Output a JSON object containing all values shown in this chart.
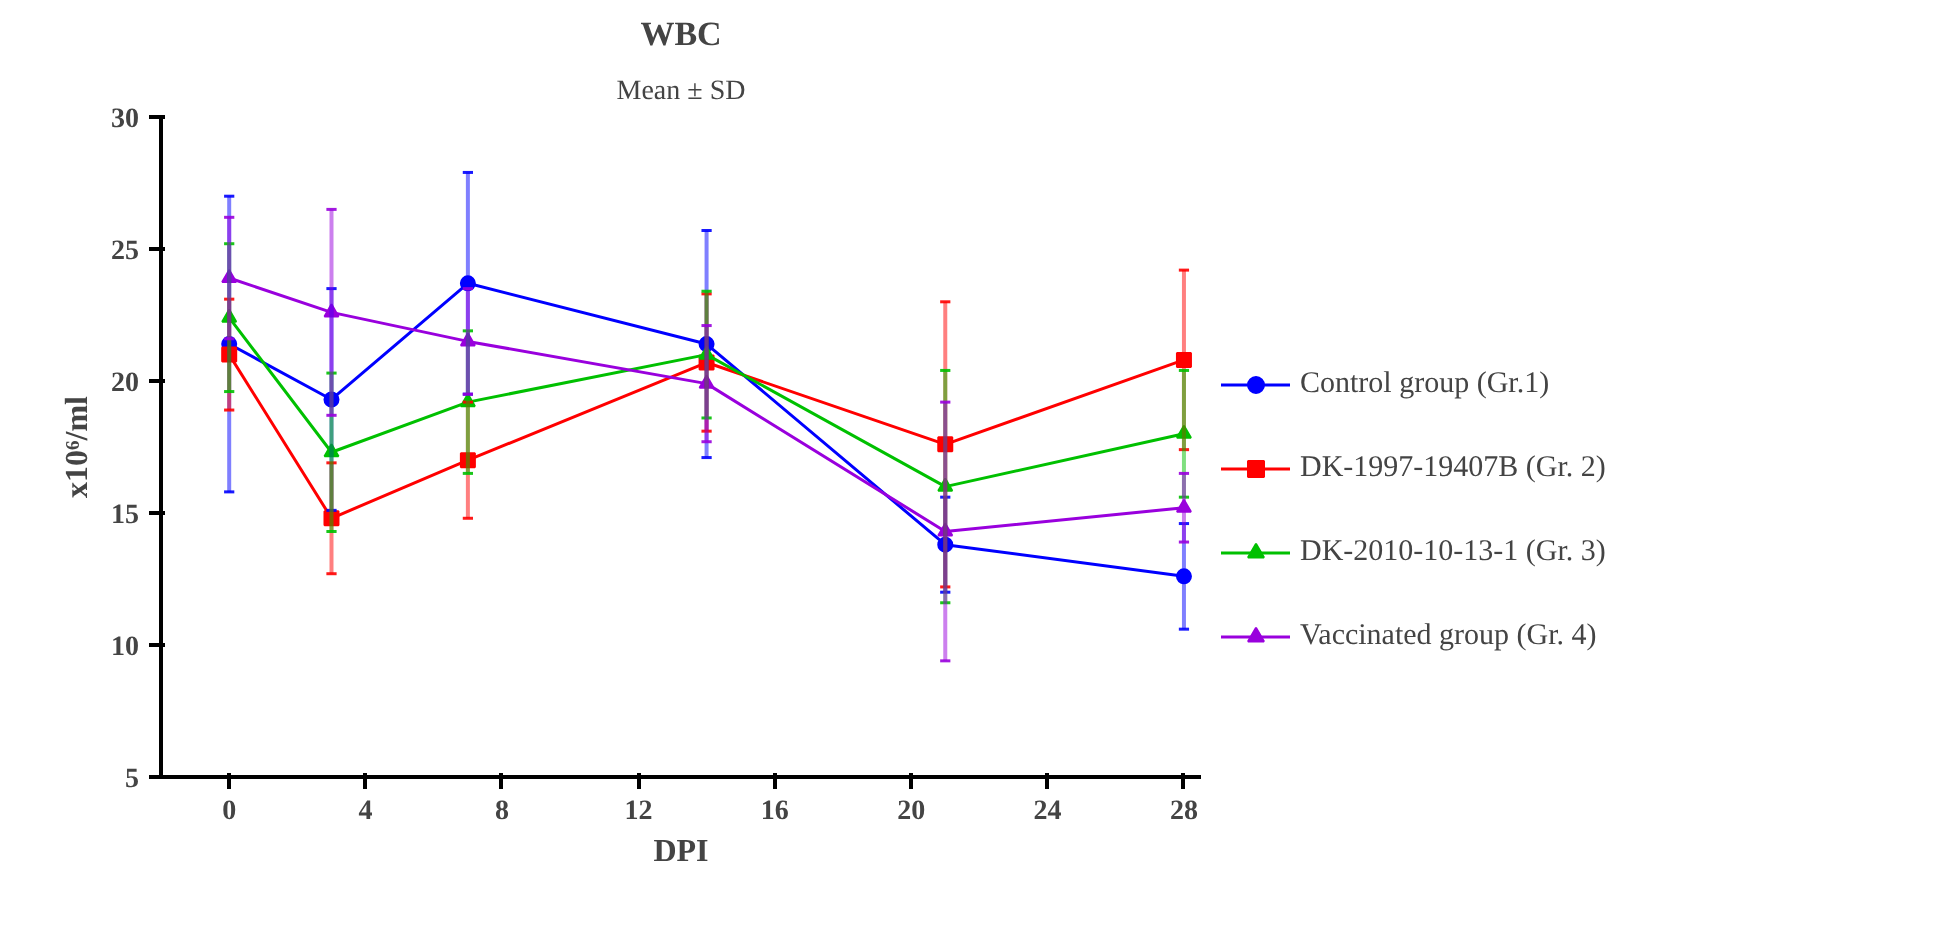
{
  "chart_data": {
    "type": "line",
    "title": "WBC",
    "subtitle": "Mean ± SD",
    "xlabel": "DPI",
    "ylabel": "x10⁶/ml",
    "x": [
      0,
      3,
      7,
      14,
      21,
      28
    ],
    "xlim": [
      -2,
      28.5
    ],
    "xticks": [
      0,
      4,
      8,
      12,
      16,
      20,
      24,
      28
    ],
    "ylim": [
      5,
      30
    ],
    "yticks": [
      5,
      10,
      15,
      20,
      25,
      30
    ],
    "grid": false,
    "legend": "right",
    "series": [
      {
        "name": "Control group (Gr.1)",
        "color": "#0000ff",
        "marker": "circle",
        "values": [
          21.4,
          19.3,
          23.7,
          21.4,
          13.8,
          12.6
        ],
        "errors": [
          5.6,
          4.2,
          4.2,
          4.3,
          1.8,
          2.0
        ]
      },
      {
        "name": "DK-1997-19407B (Gr. 2)",
        "color": "#ff0000",
        "marker": "square",
        "values": [
          21.0,
          14.8,
          17.0,
          20.7,
          17.6,
          20.8
        ],
        "errors": [
          2.1,
          2.1,
          2.2,
          2.6,
          5.4,
          3.4
        ]
      },
      {
        "name": "DK-2010-10-13-1 (Gr. 3)",
        "color": "#00c000",
        "marker": "triangle",
        "values": [
          22.4,
          17.3,
          19.2,
          21.0,
          16.0,
          18.0
        ],
        "errors": [
          2.8,
          3.0,
          2.7,
          2.4,
          4.4,
          2.4
        ]
      },
      {
        "name": "Vaccinated group (Gr. 4)",
        "color": "#9900dd",
        "marker": "triangle",
        "values": [
          23.9,
          22.6,
          21.5,
          19.9,
          14.3,
          15.2
        ],
        "errors": [
          2.3,
          3.9,
          2.0,
          2.2,
          4.9,
          1.3
        ]
      }
    ]
  }
}
